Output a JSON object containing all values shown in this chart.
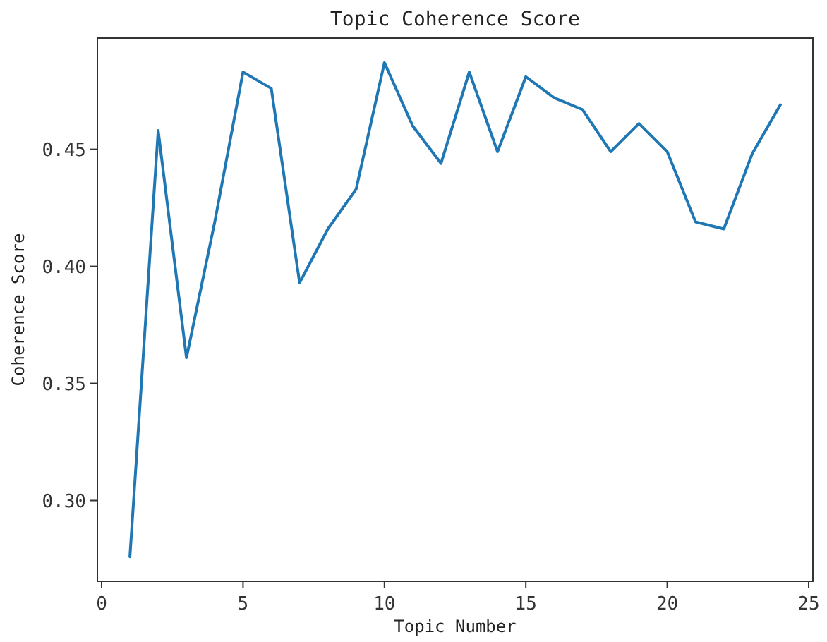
{
  "chart_data": {
    "type": "line",
    "title": "Topic Coherence Score",
    "xlabel": "Topic Number",
    "ylabel": "Coherence Score",
    "x": [
      1,
      2,
      3,
      4,
      5,
      6,
      7,
      8,
      9,
      10,
      11,
      12,
      13,
      14,
      15,
      16,
      17,
      18,
      19,
      20,
      21,
      22,
      23,
      24
    ],
    "series": [
      {
        "color": "#1f77b4",
        "values": [
          0.276,
          0.458,
          0.361,
          0.419,
          0.483,
          0.476,
          0.393,
          0.416,
          0.433,
          0.487,
          0.46,
          0.444,
          0.483,
          0.449,
          0.481,
          0.472,
          0.467,
          0.449,
          0.461,
          0.449,
          0.419,
          0.416,
          0.448,
          0.469
        ]
      }
    ],
    "xlim": [
      -0.15,
      25.15
    ],
    "ylim": [
      0.2655,
      0.4975
    ],
    "xticks": [
      0,
      5,
      10,
      15,
      20,
      25
    ],
    "yticks": [
      {
        "value": 0.3,
        "label": "0.30"
      },
      {
        "value": 0.35,
        "label": "0.35"
      },
      {
        "value": 0.4,
        "label": "0.40"
      },
      {
        "value": 0.45,
        "label": "0.45"
      }
    ],
    "grid": false,
    "marker": "none",
    "line_style": "solid"
  }
}
